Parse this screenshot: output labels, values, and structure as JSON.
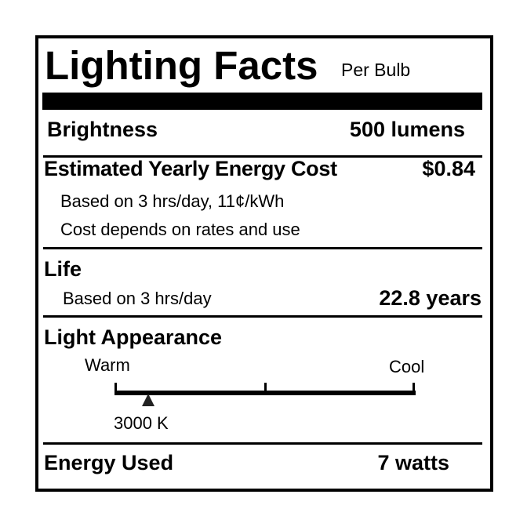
{
  "header": {
    "title": "Lighting Facts",
    "subtitle": "Per Bulb"
  },
  "brightness": {
    "label": "Brightness",
    "value": "500 lumens"
  },
  "energy_cost": {
    "label": "Estimated Yearly Energy Cost",
    "value": "$0.84",
    "note1": "Based on 3 hrs/day, 11¢/kWh",
    "note2": "Cost depends on rates and use"
  },
  "life": {
    "label": "Life",
    "note": "Based on 3 hrs/day",
    "value": "22.8 years"
  },
  "light_appearance": {
    "label": "Light Appearance",
    "warm_label": "Warm",
    "cool_label": "Cool",
    "value": "3000 K",
    "marker_fraction": 0.11
  },
  "energy_used": {
    "label": "Energy Used",
    "value": "7 watts"
  }
}
